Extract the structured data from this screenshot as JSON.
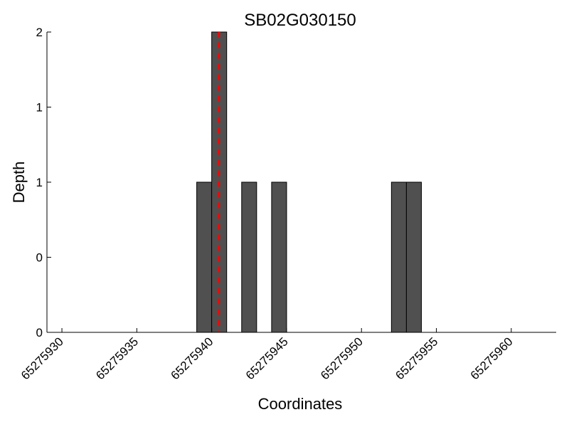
{
  "chart_data": {
    "type": "bar",
    "title": "SB02G030150",
    "xlabel": "Coordinates",
    "ylabel": "Depth",
    "xlim": [
      65275929,
      65275963
    ],
    "ylim": [
      0,
      2
    ],
    "y_tick_labels": [
      "0",
      "0",
      "1",
      "1",
      "2"
    ],
    "x_ticks": [
      65275930,
      65275935,
      65275940,
      65275945,
      65275950,
      65275955,
      65275960
    ],
    "x_tick_labels": [
      "65275930",
      "65275935",
      "65275940",
      "65275945",
      "65275950",
      "65275955",
      "65275960"
    ],
    "bars": [
      {
        "x": 65275939.5,
        "value": 1.0
      },
      {
        "x": 65275940.5,
        "value": 2.0
      },
      {
        "x": 65275942.5,
        "value": 1.0
      },
      {
        "x": 65275944.5,
        "value": 1.0
      },
      {
        "x": 65275952.5,
        "value": 1.0
      },
      {
        "x": 65275953.5,
        "value": 1.0
      }
    ],
    "bar_width": 1,
    "marker_x": 65275940.5,
    "bar_color": "#505050",
    "marker_color": "#ff0000",
    "grid": false
  }
}
